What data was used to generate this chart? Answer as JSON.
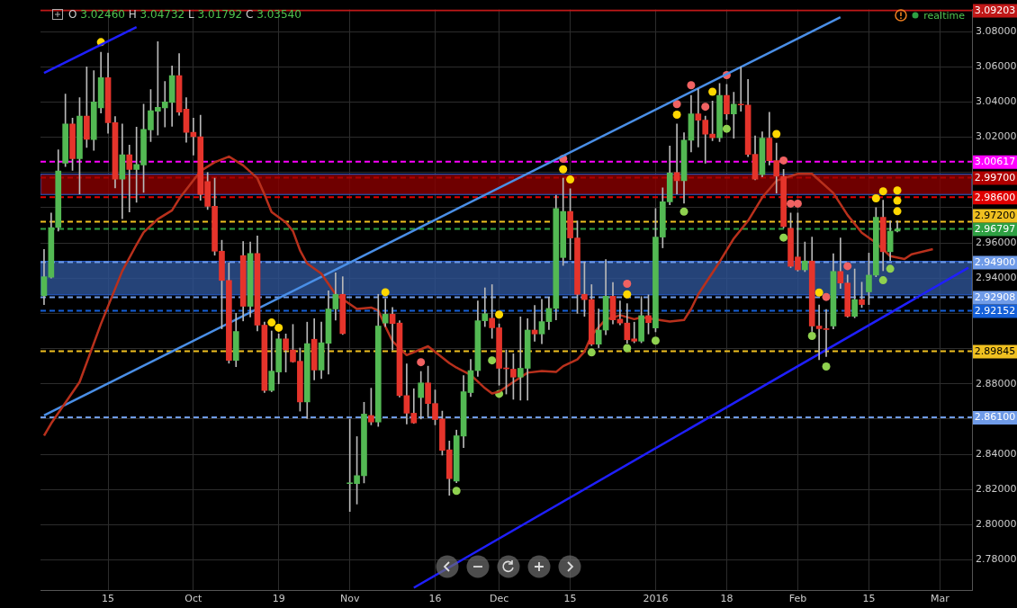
{
  "chart_data": {
    "type": "candlestick",
    "categories": [
      null,
      null,
      null,
      null,
      null,
      null,
      null,
      null,
      null,
      "15",
      null,
      null,
      null,
      null,
      null,
      null,
      null,
      null,
      null,
      null,
      null,
      "Oct",
      null,
      null,
      null,
      null,
      null,
      null,
      null,
      null,
      null,
      null,
      null,
      "19",
      null,
      null,
      null,
      null,
      null,
      null,
      null,
      null,
      null,
      "Nov",
      null,
      null,
      null,
      null,
      null,
      null,
      null,
      null,
      null,
      null,
      null,
      "16",
      null,
      null,
      null,
      null,
      null,
      null,
      null,
      null,
      "Dec",
      null,
      null,
      null,
      null,
      null,
      null,
      null,
      null,
      null,
      "15",
      null,
      null,
      null,
      null,
      null,
      null,
      null,
      null,
      null,
      null,
      null,
      "2016",
      null,
      null,
      null,
      null,
      null,
      null,
      null,
      null,
      null,
      "18",
      null,
      null,
      null,
      null,
      null,
      null,
      null,
      null,
      null,
      "Feb",
      null,
      null,
      null,
      null,
      null,
      null,
      null,
      null,
      null,
      "15",
      null,
      null,
      null,
      null,
      null,
      null,
      null,
      null,
      null,
      "Mar",
      null,
      null,
      null,
      null
    ],
    "ohlc": [
      [
        2.93,
        2.9563,
        2.925,
        2.9408
      ],
      [
        2.9405,
        2.977,
        2.94,
        2.9687
      ],
      [
        2.9687,
        3.0128,
        2.9667,
        3.0008
      ],
      [
        3.0053,
        3.0445,
        3.0033,
        3.0275
      ],
      [
        3.0275,
        3.0308,
        3.0012,
        3.0078
      ],
      [
        3.0078,
        3.0425,
        2.9878,
        3.032
      ],
      [
        3.032,
        3.06,
        3.0142,
        3.0188
      ],
      [
        3.0187,
        3.0578,
        3.0125,
        3.04
      ],
      [
        3.0367,
        3.0683,
        3.0337,
        3.0538
      ],
      [
        3.0538,
        3.0678,
        3.0222,
        3.0283
      ],
      [
        3.0283,
        3.0317,
        2.9912,
        2.9962
      ],
      [
        2.9962,
        3.0275,
        2.9737,
        3.01
      ],
      [
        3.01,
        3.0155,
        2.9775,
        3.0017
      ],
      [
        3.0017,
        3.0258,
        2.983,
        3.0045
      ],
      [
        3.0043,
        3.0388,
        2.9887,
        3.0245
      ],
      [
        3.0242,
        3.047,
        3.0175,
        3.035
      ],
      [
        3.0347,
        3.0742,
        3.0212,
        3.037
      ],
      [
        3.0367,
        3.0517,
        3.0258,
        3.04
      ],
      [
        3.0397,
        3.0605,
        3.0262,
        3.055
      ],
      [
        3.055,
        3.0675,
        3.0325,
        3.0342
      ],
      [
        3.036,
        3.0425,
        3.0172,
        3.0228
      ],
      [
        3.0228,
        3.0308,
        3.0098,
        3.0203
      ],
      [
        3.0203,
        3.0325,
        2.9842,
        2.9875
      ],
      [
        2.9948,
        3.0,
        2.979,
        2.9808
      ],
      [
        2.9808,
        2.9967,
        2.953,
        2.9553
      ],
      [
        2.9553,
        2.9615,
        2.9112,
        2.9387
      ],
      [
        2.9387,
        2.9487,
        2.8917,
        2.8933
      ],
      [
        2.8933,
        2.92,
        2.8897,
        2.9097
      ],
      [
        2.9528,
        2.9608,
        2.9157,
        2.924
      ],
      [
        2.924,
        2.9605,
        2.918,
        2.954
      ],
      [
        2.954,
        2.964,
        2.91,
        2.9133
      ],
      [
        2.9133,
        2.915,
        2.875,
        2.8762
      ],
      [
        2.8762,
        2.91,
        2.8755,
        2.8872
      ],
      [
        2.8867,
        2.9083,
        2.88,
        2.9055
      ],
      [
        2.9055,
        2.9083,
        2.8867,
        2.8992
      ],
      [
        2.8992,
        2.9137,
        2.8922,
        2.8925
      ],
      [
        2.8928,
        2.9003,
        2.8645,
        2.8697
      ],
      [
        2.8697,
        2.915,
        2.8603,
        2.9028
      ],
      [
        2.9053,
        2.917,
        2.8822,
        2.8878
      ],
      [
        2.8878,
        2.915,
        2.883,
        2.9033
      ],
      [
        2.903,
        2.9328,
        2.8855,
        2.9225
      ],
      [
        2.9225,
        2.943,
        2.9162,
        2.9308
      ],
      [
        2.9308,
        2.9408,
        2.908,
        2.9085
      ],
      [
        2.8233,
        2.86,
        2.8075,
        2.8233
      ],
      [
        2.8233,
        2.85,
        2.8117,
        2.8278
      ],
      [
        2.8278,
        2.8695,
        2.8237,
        2.8628
      ],
      [
        2.862,
        2.8775,
        2.8567,
        2.8583
      ],
      [
        2.8583,
        2.9308,
        2.8558,
        2.9128
      ],
      [
        2.9145,
        2.9283,
        2.9125,
        2.9195
      ],
      [
        2.9195,
        2.9233,
        2.8992,
        2.9142
      ],
      [
        2.9145,
        2.9158,
        2.8725,
        2.8733
      ],
      [
        2.8733,
        2.8913,
        2.8572,
        2.8633
      ],
      [
        2.8633,
        2.8772,
        2.8575,
        2.8578
      ],
      [
        2.8722,
        2.887,
        2.86,
        2.8805
      ],
      [
        2.8805,
        2.89,
        2.8612,
        2.8688
      ],
      [
        2.8688,
        2.8765,
        2.8567,
        2.8597
      ],
      [
        2.86,
        2.8645,
        2.8395,
        2.8422
      ],
      [
        2.8425,
        2.8475,
        2.8167,
        2.8262
      ],
      [
        2.8247,
        2.8537,
        2.8238,
        2.8505
      ],
      [
        2.8503,
        2.8847,
        2.8438,
        2.8755
      ],
      [
        2.875,
        2.8938,
        2.8728,
        2.8875
      ],
      [
        2.8875,
        2.927,
        2.8842,
        2.9158
      ],
      [
        2.9158,
        2.9345,
        2.9125,
        2.9198
      ],
      [
        2.9172,
        2.9363,
        2.9058,
        2.9118
      ],
      [
        2.9118,
        2.914,
        2.8792,
        2.8888
      ],
      [
        2.8888,
        2.8992,
        2.8742,
        2.8885
      ],
      [
        2.8883,
        2.897,
        2.8712,
        2.8838
      ],
      [
        2.8838,
        2.918,
        2.8707,
        2.8888
      ],
      [
        2.8888,
        2.917,
        2.8707,
        2.9105
      ],
      [
        2.9105,
        2.9245,
        2.9042,
        2.9083
      ],
      [
        2.9083,
        2.928,
        2.9028,
        2.9153
      ],
      [
        2.9153,
        2.9292,
        2.9108,
        2.9228
      ],
      [
        2.9228,
        2.987,
        2.9163,
        2.9795
      ],
      [
        2.9517,
        2.9967,
        2.9472,
        2.9778
      ],
      [
        2.9778,
        2.9908,
        2.9505,
        2.9628
      ],
      [
        2.9628,
        2.9725,
        2.92,
        2.9308
      ],
      [
        2.9308,
        2.9492,
        2.9183,
        2.9278
      ],
      [
        2.9278,
        2.9363,
        2.9017,
        2.9025
      ],
      [
        2.9025,
        2.9225,
        2.9005,
        2.9105
      ],
      [
        2.9105,
        2.9505,
        2.9078,
        2.9297
      ],
      [
        2.9297,
        2.9375,
        2.914,
        2.9163
      ],
      [
        2.9167,
        2.927,
        2.9135,
        2.9145
      ],
      [
        2.9145,
        2.9255,
        2.903,
        2.905
      ],
      [
        2.9055,
        2.915,
        2.9033,
        2.9042
      ],
      [
        2.9042,
        2.9295,
        2.9033,
        2.9187
      ],
      [
        2.9187,
        2.9305,
        2.9083,
        2.9147
      ],
      [
        2.9117,
        2.9795,
        2.9095,
        2.9633
      ],
      [
        2.9633,
        2.9913,
        2.9572,
        2.9833
      ],
      [
        2.9833,
        3.015,
        2.9817,
        2.9997
      ],
      [
        3.0,
        3.0275,
        2.9878,
        2.9953
      ],
      [
        2.9953,
        3.0225,
        2.9825,
        3.0183
      ],
      [
        3.0183,
        3.0438,
        3.0117,
        3.0333
      ],
      [
        3.0333,
        3.0475,
        3.0145,
        3.0297
      ],
      [
        3.0297,
        3.032,
        3.0053,
        3.0217
      ],
      [
        3.0218,
        3.0405,
        3.018,
        3.0197
      ],
      [
        3.0197,
        3.0505,
        3.0175,
        3.0438
      ],
      [
        3.0438,
        3.05,
        3.03,
        3.0332
      ],
      [
        3.0332,
        3.0455,
        3.0195,
        3.0388
      ],
      [
        3.0387,
        3.06,
        3.0347,
        3.0383
      ],
      [
        3.0383,
        3.0528,
        3.009,
        3.0103
      ],
      [
        3.0103,
        3.0208,
        2.9958,
        2.9962
      ],
      [
        2.9987,
        3.023,
        2.9975,
        3.0195
      ],
      [
        3.0195,
        3.0342,
        3.0042,
        3.0067
      ],
      [
        3.0067,
        3.0167,
        2.9883,
        2.9978
      ],
      [
        2.9978,
        3.0017,
        2.9685,
        2.9692
      ],
      [
        2.9683,
        2.977,
        2.946,
        2.9467
      ],
      [
        2.952,
        2.977,
        2.944,
        2.9447
      ],
      [
        2.9447,
        2.9605,
        2.9437,
        2.9497
      ],
      [
        2.9497,
        2.9633,
        2.9097,
        2.9128
      ],
      [
        2.9128,
        2.9247,
        2.8937,
        2.9113
      ],
      [
        2.9113,
        2.9222,
        2.8955,
        2.9108
      ],
      [
        2.9128,
        2.9538,
        2.9112,
        2.9438
      ],
      [
        2.9438,
        2.9628,
        2.9342,
        2.9372
      ],
      [
        2.9372,
        2.9418,
        2.9178,
        2.9183
      ],
      [
        2.9183,
        2.9452,
        2.9175,
        2.9278
      ],
      [
        2.9278,
        2.9377,
        2.9233,
        2.925
      ],
      [
        2.9322,
        2.9542,
        2.925,
        2.9417
      ],
      [
        2.9417,
        2.98,
        2.9408,
        2.9745
      ],
      [
        2.9745,
        2.9842,
        2.9442,
        2.955
      ],
      [
        2.955,
        2.9725,
        2.95,
        2.9667
      ],
      [
        2.9667,
        2.9725,
        2.9662,
        2.9678
      ],
      null,
      null,
      null,
      null,
      null,
      null,
      null,
      null,
      null,
      null
    ],
    "series": [
      {
        "type": "line",
        "color": "#b8301c",
        "values": [
          2.8505,
          2.8575,
          null,
          null,
          null,
          2.881,
          null,
          null,
          2.914,
          null,
          null,
          2.944,
          null,
          2.959,
          2.966,
          null,
          2.9735,
          null,
          2.9785,
          2.985,
          null,
          null,
          3.0008,
          null,
          3.0058,
          null,
          3.009,
          null,
          3.004,
          null,
          2.9967,
          2.9875,
          2.9775,
          null,
          2.9717,
          2.9667,
          2.9558,
          2.9483,
          null,
          2.9425,
          null,
          2.9308,
          null,
          null,
          2.9225,
          null,
          2.9233,
          2.9217,
          2.9125,
          2.9042,
          null,
          2.8963,
          null,
          null,
          2.9013,
          null,
          null,
          2.8917,
          2.8892,
          null,
          2.885,
          null,
          2.8775,
          2.8745,
          2.8755,
          null,
          2.881,
          null,
          2.8863,
          null,
          2.8872,
          null,
          2.8867,
          2.89,
          null,
          2.8938,
          2.8983,
          2.9075,
          null,
          2.9167,
          2.9175,
          2.919,
          null,
          2.9167,
          2.9178,
          null,
          null,
          null,
          2.9153,
          null,
          2.9162,
          2.9225,
          2.9308,
          null,
          null,
          2.9492,
          null,
          2.9625,
          null,
          2.9725,
          null,
          2.9858,
          null,
          2.9953,
          null,
          null,
          2.9992,
          null,
          2.9992,
          null,
          null,
          2.9883,
          null,
          2.9758,
          null,
          2.9658,
          null,
          2.96,
          null,
          2.9525,
          null,
          2.9508,
          2.9535,
          null,
          null,
          2.9565,
          null,
          null,
          null,
          null,
          null
        ]
      },
      {
        "type": "line",
        "color": "#1f1fff",
        "values": [
          3.0565,
          null,
          null,
          null,
          null,
          null,
          null,
          null,
          null,
          null,
          null,
          null,
          null,
          3.0825,
          null,
          null,
          null,
          null,
          null,
          null,
          null,
          null,
          null,
          null,
          null,
          null,
          null,
          null,
          null,
          null,
          null,
          null,
          null,
          null,
          null,
          null,
          null,
          null,
          null,
          null,
          null,
          null,
          null,
          null,
          null,
          null,
          null,
          null,
          null,
          null,
          null,
          null,
          null,
          null,
          null,
          null,
          null,
          null,
          null,
          null,
          null,
          null,
          null,
          null,
          null,
          null,
          null,
          null,
          null,
          null,
          null,
          null,
          null,
          null,
          null,
          null,
          null,
          null,
          null,
          null,
          null,
          null,
          null,
          null,
          null,
          null,
          null,
          null,
          null,
          null,
          null,
          null,
          null,
          null,
          null,
          null,
          null,
          null,
          null,
          null,
          null,
          null,
          null,
          null,
          null,
          null,
          null,
          null,
          null,
          null,
          null,
          null,
          null,
          null,
          null,
          null,
          null,
          null,
          null,
          null,
          null,
          null,
          null,
          null,
          null,
          null,
          null,
          null,
          null,
          null,
          null
        ]
      },
      {
        "type": "line",
        "color": "#4a8fe7",
        "values": [
          2.862,
          null,
          null,
          null,
          null,
          null,
          null,
          null,
          null,
          null,
          null,
          null,
          null,
          null,
          null,
          null,
          null,
          null,
          null,
          null,
          null,
          null,
          null,
          null,
          null,
          null,
          null,
          null,
          null,
          null,
          null,
          null,
          null,
          null,
          null,
          null,
          null,
          null,
          null,
          null,
          null,
          null,
          null,
          null,
          null,
          null,
          null,
          null,
          null,
          null,
          null,
          null,
          null,
          null,
          null,
          null,
          null,
          null,
          null,
          null,
          null,
          null,
          null,
          null,
          null,
          null,
          null,
          null,
          null,
          null,
          null,
          null,
          null,
          null,
          null,
          null,
          null,
          null,
          null,
          null,
          null,
          null,
          null,
          null,
          null,
          null,
          null,
          null,
          null,
          null,
          null,
          null,
          null,
          null,
          null,
          null,
          null,
          null,
          null,
          null,
          null,
          null,
          null,
          null,
          null,
          null,
          null,
          null,
          null,
          null,
          null,
          null,
          3.0882,
          null,
          null,
          null,
          null,
          null,
          null,
          null,
          null,
          null,
          null,
          null,
          null,
          null,
          null,
          null,
          null,
          null,
          null
        ]
      },
      {
        "type": "line",
        "color": "#1f1fff",
        "values": [
          null,
          null,
          null,
          null,
          null,
          null,
          null,
          null,
          null,
          null,
          null,
          null,
          null,
          null,
          null,
          null,
          null,
          null,
          null,
          null,
          null,
          null,
          null,
          null,
          null,
          null,
          null,
          null,
          null,
          null,
          null,
          null,
          null,
          null,
          null,
          null,
          null,
          null,
          null,
          null,
          null,
          null,
          null,
          null,
          null,
          null,
          null,
          null,
          null,
          null,
          null,
          null,
          2.7642,
          null,
          null,
          null,
          null,
          null,
          null,
          null,
          null,
          null,
          null,
          null,
          null,
          null,
          null,
          null,
          null,
          null,
          null,
          null,
          null,
          null,
          null,
          null,
          null,
          null,
          null,
          null,
          null,
          null,
          null,
          null,
          null,
          null,
          null,
          null,
          null,
          null,
          null,
          null,
          null,
          null,
          null,
          null,
          null,
          null,
          null,
          null,
          null,
          null,
          null,
          null,
          null,
          null,
          null,
          null,
          null,
          null,
          null,
          null,
          null,
          null,
          null,
          null,
          null,
          null,
          null,
          null,
          null,
          null,
          null,
          null,
          null,
          null,
          null,
          null,
          null,
          null,
          2.9459
        ]
      },
      {
        "type": "scatter",
        "color": "#ffd700",
        "marker": "circle",
        "values": [
          null,
          null,
          null,
          null,
          null,
          null,
          null,
          null,
          3.074,
          null,
          null,
          null,
          null,
          null,
          null,
          null,
          null,
          null,
          null,
          null,
          null,
          null,
          null,
          null,
          null,
          null,
          null,
          null,
          null,
          null,
          null,
          null,
          2.9148,
          2.9118,
          null,
          null,
          null,
          null,
          null,
          null,
          null,
          null,
          null,
          null,
          null,
          null,
          null,
          null,
          2.932,
          null,
          null,
          null,
          null,
          null,
          null,
          null,
          null,
          null,
          null,
          null,
          null,
          null,
          null,
          null,
          2.9193,
          null,
          null,
          null,
          null,
          null,
          null,
          null,
          null,
          3.0018,
          2.996,
          null,
          null,
          null,
          null,
          null,
          null,
          null,
          2.9308,
          null,
          null,
          null,
          null,
          null,
          null,
          3.0328,
          null,
          null,
          null,
          null,
          3.0458,
          null,
          null,
          null,
          null,
          null,
          null,
          null,
          null,
          3.0218,
          null,
          null,
          null,
          null,
          null,
          2.9318,
          null,
          null,
          null,
          null,
          null,
          null,
          null,
          2.9853,
          2.9893,
          null,
          2.9898,
          null,
          null,
          null,
          null,
          null,
          null,
          null,
          null,
          null,
          null
        ]
      },
      {
        "type": "scatter",
        "color": "#ffd700",
        "marker": "circle",
        "values": [
          null,
          null,
          null,
          null,
          null,
          null,
          null,
          null,
          null,
          null,
          null,
          null,
          null,
          null,
          null,
          null,
          null,
          null,
          null,
          null,
          null,
          null,
          null,
          null,
          null,
          null,
          null,
          null,
          null,
          null,
          null,
          null,
          null,
          null,
          null,
          null,
          null,
          null,
          null,
          null,
          null,
          null,
          null,
          null,
          null,
          null,
          null,
          null,
          null,
          null,
          null,
          null,
          null,
          null,
          null,
          null,
          null,
          null,
          null,
          null,
          null,
          null,
          null,
          null,
          null,
          null,
          null,
          null,
          null,
          null,
          null,
          null,
          null,
          null,
          null,
          null,
          null,
          null,
          null,
          null,
          null,
          null,
          null,
          null,
          null,
          null,
          null,
          null,
          null,
          null,
          null,
          null,
          null,
          null,
          null,
          null,
          null,
          null,
          null,
          null,
          null,
          null,
          null,
          null,
          null,
          null,
          null,
          null,
          null,
          null,
          null,
          null,
          null,
          null,
          null,
          null,
          null,
          null,
          null,
          null,
          2.984,
          null,
          null,
          null,
          null,
          null,
          null,
          null,
          null,
          null,
          null
        ]
      },
      {
        "type": "scatter",
        "color": "#ffd700",
        "marker": "circle",
        "values": [
          null,
          null,
          null,
          null,
          null,
          null,
          null,
          null,
          null,
          null,
          null,
          null,
          null,
          null,
          null,
          null,
          null,
          null,
          null,
          null,
          null,
          null,
          null,
          null,
          null,
          null,
          null,
          null,
          null,
          null,
          null,
          null,
          null,
          null,
          null,
          null,
          null,
          null,
          null,
          null,
          null,
          null,
          null,
          null,
          null,
          null,
          null,
          null,
          null,
          null,
          null,
          null,
          null,
          null,
          null,
          null,
          null,
          null,
          null,
          null,
          null,
          null,
          null,
          null,
          null,
          null,
          null,
          null,
          null,
          null,
          null,
          null,
          null,
          null,
          null,
          null,
          null,
          null,
          null,
          null,
          null,
          null,
          null,
          null,
          null,
          null,
          null,
          null,
          null,
          null,
          null,
          null,
          null,
          null,
          null,
          null,
          null,
          null,
          null,
          null,
          null,
          null,
          null,
          null,
          null,
          null,
          null,
          null,
          null,
          null,
          null,
          null,
          null,
          null,
          null,
          null,
          null,
          null,
          null,
          null,
          2.978,
          null,
          null,
          null,
          null,
          null,
          null,
          null,
          null,
          null,
          null
        ]
      },
      {
        "type": "scatter",
        "color": "#f06262",
        "marker": "circle",
        "values": [
          null,
          null,
          null,
          null,
          null,
          null,
          null,
          null,
          null,
          null,
          null,
          null,
          null,
          null,
          null,
          null,
          null,
          null,
          null,
          null,
          null,
          null,
          null,
          null,
          null,
          null,
          null,
          null,
          null,
          null,
          null,
          null,
          null,
          null,
          null,
          null,
          null,
          null,
          null,
          null,
          null,
          null,
          null,
          null,
          null,
          null,
          null,
          null,
          null,
          null,
          null,
          null,
          null,
          2.8923,
          null,
          null,
          null,
          null,
          null,
          null,
          null,
          null,
          null,
          null,
          null,
          null,
          null,
          null,
          null,
          null,
          null,
          null,
          null,
          3.0078,
          null,
          null,
          null,
          null,
          null,
          null,
          null,
          null,
          2.9368,
          null,
          null,
          null,
          null,
          null,
          null,
          3.0388,
          null,
          3.0495,
          null,
          3.0373,
          null,
          null,
          3.0553,
          null,
          null,
          null,
          null,
          null,
          null,
          null,
          3.0068,
          2.9823,
          2.9823,
          null,
          null,
          null,
          2.9293,
          null,
          null,
          2.9468,
          null,
          null,
          null,
          null,
          null,
          null,
          null,
          null,
          null,
          null,
          null,
          null,
          null,
          null,
          null,
          null,
          null
        ]
      },
      {
        "type": "scatter",
        "color": "#8fd14f",
        "marker": "circle",
        "values": [
          null,
          null,
          null,
          null,
          null,
          null,
          null,
          null,
          null,
          null,
          null,
          null,
          null,
          null,
          null,
          null,
          null,
          null,
          null,
          null,
          null,
          null,
          null,
          null,
          null,
          null,
          null,
          null,
          null,
          null,
          null,
          null,
          null,
          null,
          null,
          null,
          null,
          null,
          null,
          null,
          null,
          null,
          null,
          null,
          null,
          null,
          null,
          null,
          null,
          null,
          null,
          null,
          null,
          null,
          null,
          null,
          null,
          null,
          2.8192,
          null,
          null,
          null,
          null,
          2.8933,
          2.8743,
          null,
          null,
          null,
          null,
          null,
          null,
          null,
          null,
          null,
          null,
          null,
          null,
          2.8978,
          null,
          null,
          null,
          null,
          2.9003,
          null,
          null,
          null,
          2.9045,
          null,
          null,
          null,
          2.9778,
          null,
          null,
          null,
          null,
          null,
          3.0248,
          null,
          null,
          null,
          null,
          null,
          null,
          null,
          2.963,
          null,
          null,
          null,
          2.9072,
          null,
          2.8898,
          null,
          null,
          null,
          null,
          null,
          null,
          null,
          2.9388,
          2.9453,
          null,
          null,
          null,
          null,
          null,
          null,
          null,
          null,
          null,
          null,
          null
        ]
      }
    ],
    "ylim": [
      2.7625,
      3.0925
    ],
    "yticks": [
      {
        "value": 2.78,
        "label": "2.78000"
      },
      {
        "value": 2.8,
        "label": "2.80000"
      },
      {
        "value": 2.82,
        "label": "2.82000"
      },
      {
        "value": 2.84,
        "label": "2.84000"
      },
      {
        "value": 2.86,
        "label": null
      },
      {
        "value": 2.88,
        "label": "2.88000"
      },
      {
        "value": 2.9,
        "label": null
      },
      {
        "value": 2.92,
        "label": null
      },
      {
        "value": 2.94,
        "label": "2.94000"
      },
      {
        "value": 2.96,
        "label": "2.96000"
      },
      {
        "value": 2.98,
        "label": null
      },
      {
        "value": 3.0,
        "label": null
      },
      {
        "value": 3.02,
        "label": "3.02000"
      },
      {
        "value": 3.04,
        "label": "3.04000"
      },
      {
        "value": 3.06,
        "label": "3.06000"
      },
      {
        "value": 3.08,
        "label": "3.08000"
      }
    ],
    "grid": true,
    "bands": [
      {
        "axis": "y",
        "from": 2.9875,
        "to": 2.999,
        "color": "#8b0000"
      },
      {
        "axis": "y",
        "from": 2.9305,
        "to": 2.9495,
        "color": "#2e5496"
      }
    ],
    "ref_lines": [
      {
        "axis": "y",
        "value": 3.09203,
        "label": "3.09203",
        "color": "#c01818",
        "line_style": "solid"
      },
      {
        "axis": "y",
        "value": 3.00617,
        "label": "3.00617",
        "color": "#ff00ff",
        "line_style": "dashed"
      },
      {
        "axis": "y",
        "value": 2.997,
        "label": "2.99700",
        "color": "#b00000",
        "line_style": "dashed"
      },
      {
        "axis": "y",
        "value": 2.986,
        "label": "2.98600",
        "color": "#e00000",
        "line_style": "dashed"
      },
      {
        "axis": "y",
        "value": 2.972,
        "label": "2.97200",
        "color": "#f0c020",
        "line_style": "dashed"
      },
      {
        "axis": "y",
        "value": 2.96797,
        "label": "2.96797",
        "color": "#2ea043",
        "line_style": "dashed"
      },
      {
        "axis": "y",
        "value": 2.949,
        "label": "2.94900",
        "color": "#6f9be8",
        "line_style": "dashed"
      },
      {
        "axis": "y",
        "value": 2.92908,
        "label": "2.92908",
        "color": "#6f9be8",
        "line_style": "dashed"
      },
      {
        "axis": "y",
        "value": 2.92152,
        "label": "2.92152",
        "color": "#1560d8",
        "line_style": "dashed"
      },
      {
        "axis": "y",
        "value": 2.89845,
        "label": "2.89845",
        "color": "#f0c020",
        "line_style": "dashed"
      },
      {
        "axis": "y",
        "value": 2.861,
        "label": "2.86100",
        "color": "#6f9be8",
        "line_style": "dashed"
      }
    ],
    "annotations": [
      "O 3.02460 H 3.04732 L 3.01792 C 3.03540",
      "realtime"
    ]
  }
}
